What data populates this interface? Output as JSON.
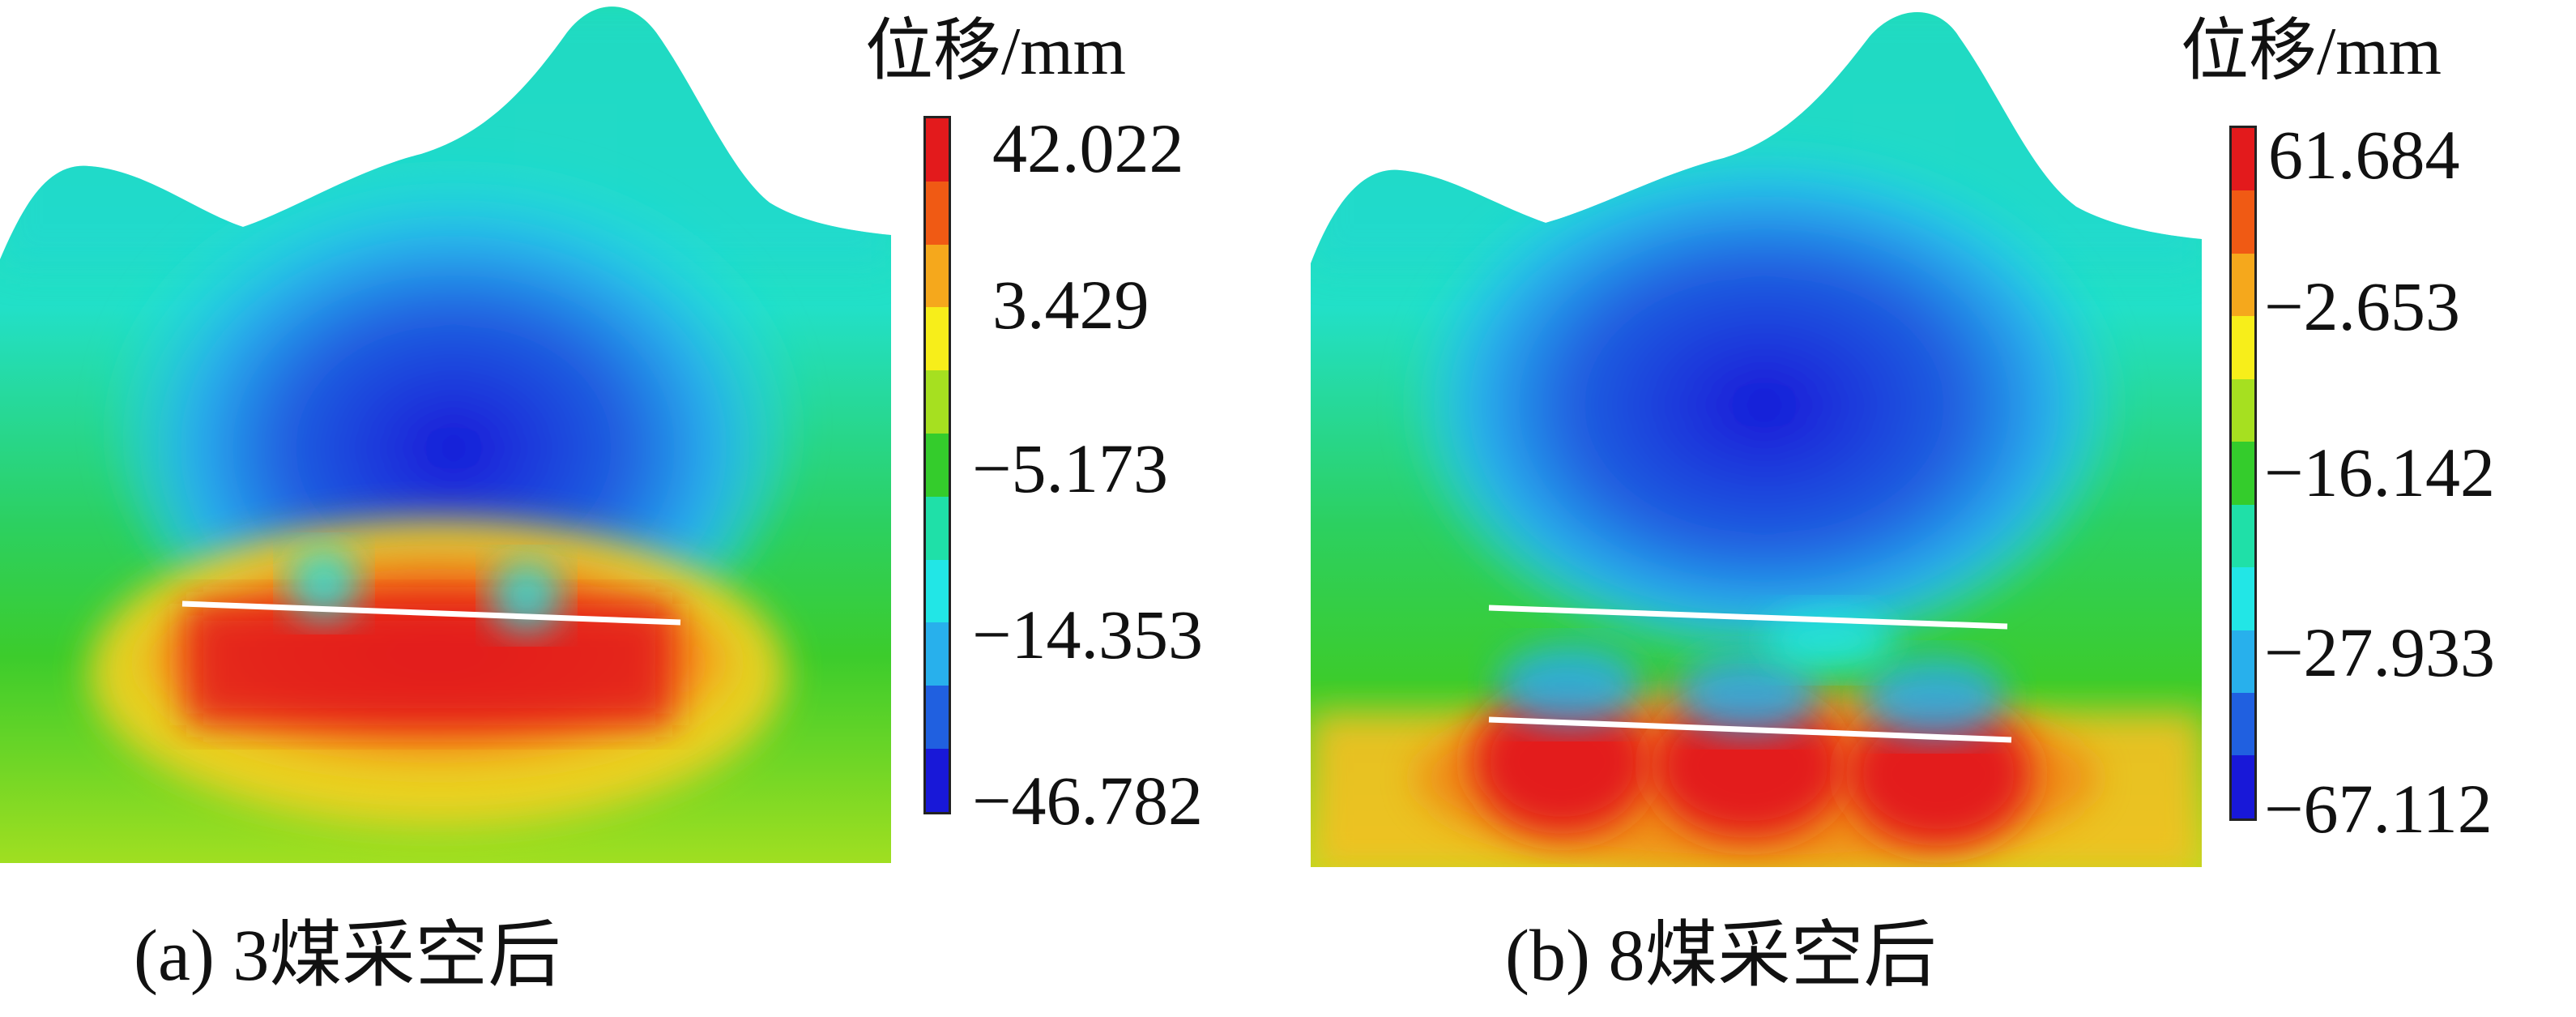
{
  "panels": [
    {
      "caption": "(a)  3煤采空后",
      "legend_title": "位移/mm",
      "ticks": [
        "42.022",
        "3.429",
        "−5.173",
        "−14.353",
        "−46.782"
      ]
    },
    {
      "caption": "(b)  8煤采空后",
      "legend_title": "位移/mm",
      "ticks": [
        "61.684",
        "−2.653",
        "−16.142",
        "−27.933",
        "−67.112"
      ]
    }
  ],
  "colorbar_colors": [
    "#e31a1c",
    "#f05a14",
    "#f5a81c",
    "#f7ee1a",
    "#a6e020",
    "#34cc2c",
    "#1fe0a8",
    "#22e6e6",
    "#28b0ec",
    "#2060e0",
    "#1818d8"
  ]
}
